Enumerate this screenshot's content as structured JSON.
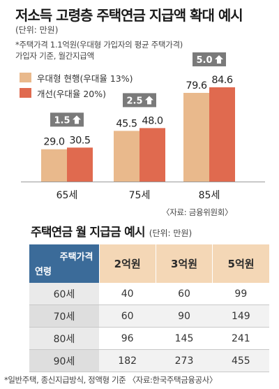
{
  "title": "저소득 고령층 주택연금 지급액 확대 예시",
  "unit": "(단위: 만원)",
  "note_line1": "*주택가격 1.1억원(우대형 가입자의 평균 주택가격)",
  "note_line2": "가입자 기준, 월간지급액",
  "source1": "〈자료: 금융위원회〉",
  "chart_data": {
    "type": "bar",
    "categories": [
      "65세",
      "75세",
      "85세"
    ],
    "series": [
      {
        "name": "우대형 현행(우대율 13%)",
        "values": [
          29.0,
          45.5,
          79.6
        ],
        "color": "#e9b98c"
      },
      {
        "name": "개선(우대율 20%)",
        "values": [
          30.5,
          48.0,
          84.6
        ],
        "color": "#e06a4f"
      }
    ],
    "value_labels": [
      [
        "29.0",
        "30.5"
      ],
      [
        "45.5",
        "48.0"
      ],
      [
        "79.6",
        "84.6"
      ]
    ],
    "increase_labels": [
      "1.5",
      "2.5",
      "5.0"
    ],
    "ylim": [
      0,
      100
    ],
    "title": "저소득 고령층 주택연금 지급액 확대 예시",
    "legend": "top-left"
  },
  "table": {
    "title": "주택연금 월 지급금 예시",
    "unit": "(단위: 만원)",
    "corner_top": "주택가격",
    "corner_bottom": "연령",
    "columns": [
      "2억원",
      "3억원",
      "5억원"
    ],
    "rows": [
      {
        "label": "60세",
        "values": [
          "40",
          "60",
          "99"
        ]
      },
      {
        "label": "70세",
        "values": [
          "60",
          "90",
          "149"
        ]
      },
      {
        "label": "80세",
        "values": [
          "96",
          "145",
          "241"
        ]
      },
      {
        "label": "90세",
        "values": [
          "182",
          "273",
          "455"
        ]
      }
    ]
  },
  "source2": "*일반주택, 종신지급방식, 정액형 기준 〈자료:한국주택금융공사〉",
  "colors": {
    "header_blue": "#3b6b99",
    "header_peach": "#f4d7b6",
    "badge": "#7a7a7a"
  }
}
